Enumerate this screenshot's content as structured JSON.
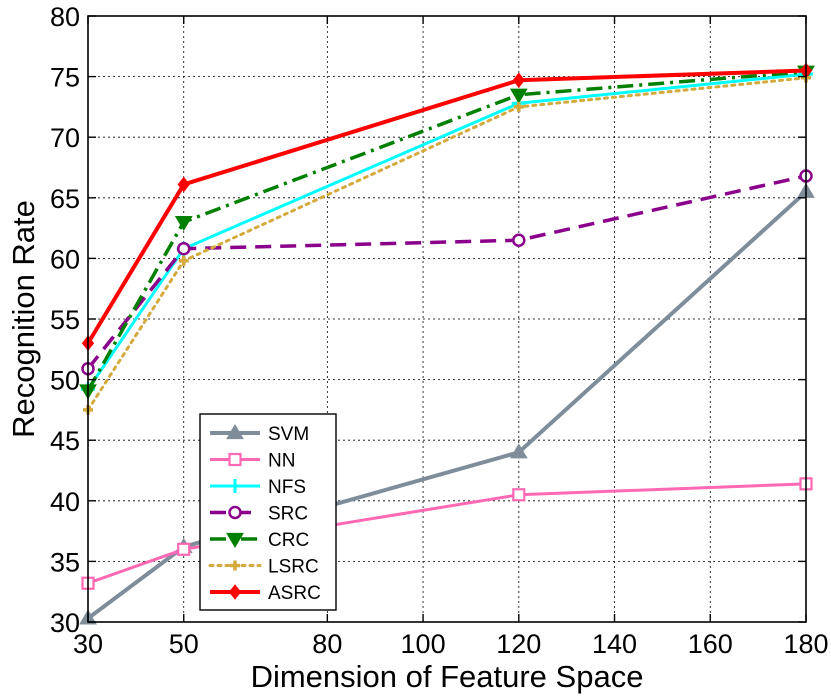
{
  "chart_data": {
    "type": "line",
    "title": "",
    "xlabel": "Dimension of Feature Space",
    "ylabel": "Recognition Rate",
    "x_ticks": [
      30,
      50,
      80,
      100,
      120,
      140,
      160,
      180
    ],
    "y_ticks": [
      30,
      35,
      40,
      45,
      50,
      55,
      60,
      65,
      70,
      75,
      80
    ],
    "xlim": [
      30,
      180
    ],
    "ylim": [
      30,
      80
    ],
    "grid": true,
    "legend_position": "bottom-left",
    "x": [
      30,
      50,
      120,
      180
    ],
    "series": [
      {
        "name": "SVM",
        "values": [
          30.3,
          36.2,
          44.0,
          65.5
        ],
        "color": "#7f8c9a",
        "dash": "solid",
        "marker": "triangle-up",
        "width": 4
      },
      {
        "name": "NN",
        "values": [
          33.2,
          36.0,
          40.5,
          41.4
        ],
        "color": "#ff69b4",
        "dash": "solid",
        "marker": "square",
        "width": 3
      },
      {
        "name": "NFS",
        "values": [
          49.2,
          60.8,
          72.8,
          75.2
        ],
        "color": "#00ffff",
        "dash": "solid",
        "marker": "plus",
        "width": 3
      },
      {
        "name": "SRC",
        "values": [
          50.9,
          60.8,
          61.5,
          66.8
        ],
        "color": "#8b008b",
        "dash": "dash",
        "marker": "circle",
        "width": 3.5
      },
      {
        "name": "CRC",
        "values": [
          49.1,
          63.0,
          73.5,
          75.4
        ],
        "color": "#008000",
        "dash": "dashdot",
        "marker": "triangle-down",
        "width": 3.5
      },
      {
        "name": "LSRC",
        "values": [
          47.5,
          59.8,
          72.5,
          74.9
        ],
        "color": "#d4aa3c",
        "dash": "dot",
        "marker": "plus-small",
        "width": 3
      },
      {
        "name": "ASRC",
        "values": [
          53.0,
          66.1,
          74.7,
          75.5
        ],
        "color": "#ff0000",
        "dash": "solid",
        "marker": "diamond",
        "width": 4
      }
    ]
  }
}
